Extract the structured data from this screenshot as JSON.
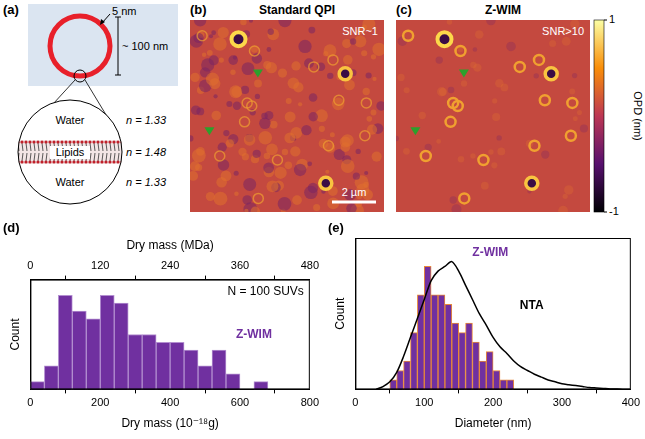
{
  "panels": {
    "a": {
      "letter": "(a)",
      "thickness": "5 nm",
      "diameter": "~ 100 nm",
      "layers": [
        {
          "medium": "Water",
          "n": "n = 1.33"
        },
        {
          "medium": "Lipids",
          "n": "n = 1.48"
        },
        {
          "medium": "Water",
          "n": "n = 1.33"
        }
      ]
    },
    "b": {
      "letter": "(b)",
      "title": "Standard QPI",
      "snr": "SNR~1",
      "scale_bar": "2 µm"
    },
    "c": {
      "letter": "(c)",
      "title": "Z-WIM",
      "snr": "SNR>10",
      "colorbar": {
        "label": "OPD (nm)",
        "range": [
          -1,
          1
        ],
        "ticks": [
          -1,
          1
        ]
      }
    }
  },
  "chart_data": [
    {
      "panel": "(d)",
      "type": "histogram",
      "x_label": "Dry mass (10⁻¹⁸g)",
      "x2_label": "Dry mass (MDa)",
      "y_label": "Count",
      "xlim": [
        0,
        800
      ],
      "xticks": [
        0,
        200,
        400,
        600,
        800
      ],
      "x2lim": [
        0,
        480
      ],
      "x2ticks": [
        0,
        120,
        240,
        360,
        480
      ],
      "ylim": [
        0,
        14
      ],
      "tick_labels": "x",
      "grid": false,
      "annotations": [
        "N = 100 SUVs"
      ],
      "series": [
        {
          "name": "Z-WIM",
          "type": "histogram",
          "color": "#7030a0",
          "bins": [
            0,
            40,
            80,
            120,
            160,
            200,
            240,
            280,
            320,
            360,
            400,
            440,
            480,
            520,
            560,
            600,
            640,
            680
          ],
          "counts": [
            1,
            3,
            12,
            10,
            9,
            12,
            11,
            7,
            7,
            6,
            6,
            5,
            3,
            5,
            2,
            0,
            1
          ]
        }
      ]
    },
    {
      "panel": "(e)",
      "type": "histogram",
      "x_label": "Diameter (nm)",
      "y_label": "Count",
      "xlim": [
        0,
        400
      ],
      "xticks": [
        0,
        100,
        200,
        300,
        400
      ],
      "ylim": [
        0,
        16
      ],
      "tick_labels": "x",
      "grid": false,
      "series": [
        {
          "name": "Z-WIM",
          "type": "histogram",
          "color": "#7030a0",
          "bins": [
            50,
            60,
            70,
            80,
            90,
            100,
            110,
            120,
            130,
            140,
            150,
            160,
            170,
            180,
            190,
            200,
            210,
            220,
            230
          ],
          "counts": [
            1,
            2,
            3,
            6,
            10,
            13,
            10,
            10,
            9,
            7,
            6,
            7,
            5,
            3,
            4,
            2,
            1,
            1
          ]
        },
        {
          "name": "NTA",
          "type": "line",
          "color": "#000000",
          "x": [
            30,
            40,
            50,
            60,
            70,
            80,
            90,
            100,
            110,
            120,
            130,
            140,
            150,
            160,
            170,
            180,
            190,
            200,
            210,
            220,
            230,
            240,
            250,
            260,
            270,
            280,
            290,
            300,
            310,
            320,
            330,
            340,
            350,
            360,
            370,
            380,
            390,
            400
          ],
          "values": [
            0,
            0.3,
            0.8,
            1.8,
            3.5,
            5.5,
            7.5,
            9.5,
            11.5,
            12.5,
            13,
            13.5,
            12.5,
            11,
            9.5,
            8,
            6.8,
            5.5,
            4.5,
            3.8,
            3,
            2.4,
            2,
            1.6,
            1.3,
            1,
            0.8,
            0.6,
            0.5,
            0.4,
            0.3,
            0.2,
            0.15,
            0.1,
            0.05,
            0.05,
            0,
            0
          ]
        }
      ]
    }
  ]
}
